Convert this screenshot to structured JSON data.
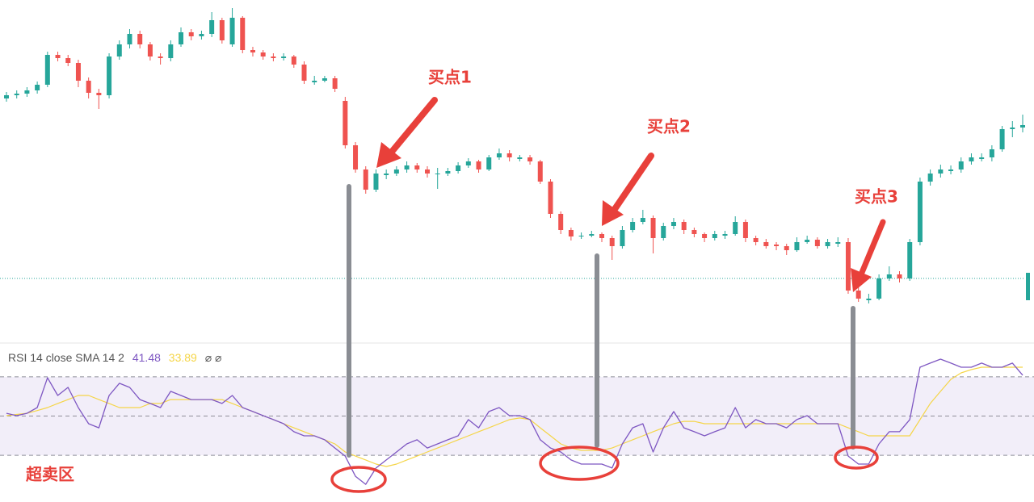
{
  "chart_data": [
    {
      "type": "candlestick",
      "open": [
        298,
        302,
        304,
        308,
        315,
        352,
        348,
        342,
        320,
        305,
        302,
        350,
        365,
        378,
        365,
        350,
        348,
        365,
        380,
        375,
        378,
        395,
        365,
        398,
        358,
        355,
        350,
        348,
        350,
        340,
        318,
        320,
        323,
        295,
        240,
        210,
        185,
        203,
        205,
        210,
        215,
        210,
        205,
        205,
        208,
        215,
        220,
        210,
        225,
        230,
        223,
        225,
        220,
        195,
        155,
        135,
        127,
        128,
        130,
        125,
        115,
        135,
        145,
        150,
        125,
        140,
        145,
        135,
        130,
        125,
        128,
        130,
        145,
        125,
        120,
        117,
        115,
        110,
        120,
        123,
        115,
        118,
        120,
        60,
        48,
        50,
        75,
        80,
        75,
        120,
        195,
        205,
        208,
        210,
        220,
        223,
        225,
        235,
        260,
        262
      ],
      "high": [
        306,
        308,
        312,
        319,
        356,
        356,
        352,
        346,
        324,
        310,
        354,
        370,
        384,
        382,
        368,
        354,
        370,
        386,
        384,
        382,
        405,
        398,
        410,
        400,
        362,
        358,
        354,
        354,
        352,
        344,
        326,
        326,
        326,
        300,
        244,
        214,
        210,
        210,
        214,
        220,
        218,
        214,
        212,
        212,
        219,
        224,
        222,
        228,
        236,
        234,
        228,
        228,
        222,
        198,
        158,
        138,
        132,
        134,
        132,
        128,
        140,
        150,
        160,
        153,
        144,
        150,
        148,
        138,
        132,
        134,
        134,
        152,
        148,
        128,
        124,
        120,
        118,
        126,
        128,
        126,
        124,
        126,
        125,
        64,
        56,
        80,
        90,
        84,
        124,
        200,
        210,
        216,
        215,
        225,
        230,
        230,
        240,
        264,
        270,
        278
      ],
      "low": [
        294,
        298,
        300,
        304,
        312,
        344,
        338,
        312,
        298,
        285,
        298,
        346,
        360,
        360,
        345,
        340,
        344,
        362,
        370,
        371,
        374,
        366,
        362,
        354,
        350,
        346,
        344,
        345,
        336,
        316,
        315,
        318,
        306,
        236,
        206,
        180,
        182,
        198,
        202,
        206,
        206,
        200,
        186,
        202,
        205,
        212,
        206,
        208,
        222,
        220,
        220,
        216,
        192,
        150,
        130,
        122,
        124,
        126,
        120,
        98,
        112,
        132,
        142,
        106,
        122,
        136,
        130,
        126,
        120,
        122,
        124,
        128,
        120,
        116,
        112,
        110,
        104,
        108,
        118,
        112,
        112,
        114,
        56,
        46,
        44,
        48,
        72,
        70,
        72,
        116,
        190,
        200,
        204,
        206,
        216,
        220,
        220,
        232,
        250,
        256
      ],
      "close": [
        302,
        304,
        308,
        315,
        352,
        348,
        342,
        320,
        305,
        302,
        350,
        365,
        378,
        365,
        350,
        348,
        365,
        380,
        375,
        378,
        395,
        370,
        398,
        358,
        355,
        350,
        348,
        350,
        340,
        320,
        320,
        323,
        310,
        240,
        210,
        185,
        205,
        205,
        210,
        215,
        210,
        205,
        205,
        208,
        215,
        220,
        210,
        225,
        230,
        225,
        225,
        220,
        195,
        155,
        135,
        127,
        128,
        130,
        125,
        115,
        135,
        145,
        150,
        125,
        140,
        145,
        135,
        130,
        125,
        130,
        130,
        145,
        125,
        120,
        115,
        115,
        110,
        120,
        123,
        115,
        120,
        120,
        60,
        50,
        50,
        75,
        80,
        75,
        120,
        195,
        205,
        210,
        210,
        220,
        225,
        225,
        235,
        260,
        262,
        265
      ],
      "up_color": "#26a69a",
      "down_color": "#ef5350",
      "ylim": [
        0,
        420
      ],
      "price_line": 75,
      "price_line_color": "#26a69a",
      "annotations": [
        "买点1",
        "买点2",
        "买点3"
      ]
    },
    {
      "type": "line",
      "legend": {
        "label": "RSI 14 close SMA 14 2",
        "values": [
          41.48,
          33.89
        ],
        "suffix": "⌀ ⌀"
      },
      "series": [
        {
          "color": "#7e57c2",
          "values": [
            51.4,
            50.2,
            51.4,
            54.3,
            69.5,
            60.5,
            64.6,
            54.3,
            46.1,
            44.0,
            60.5,
            66.7,
            64.6,
            58.4,
            56.4,
            54.3,
            62.6,
            60.5,
            58.4,
            58.4,
            58.4,
            56.4,
            60.5,
            54.3,
            52.3,
            50.2,
            48.2,
            46.1,
            42.0,
            39.9,
            39.9,
            37.9,
            33.7,
            29.6,
            19.3,
            15.2,
            23.5,
            27.6,
            31.7,
            35.8,
            37.9,
            33.7,
            35.8,
            37.9,
            39.9,
            48.2,
            44.0,
            52.3,
            54.3,
            50.2,
            50.2,
            48.2,
            37.9,
            33.7,
            31.7,
            27.6,
            25.5,
            25.5,
            25.5,
            23.5,
            35.8,
            44.0,
            46.1,
            31.7,
            44.0,
            52.3,
            44.0,
            42.0,
            39.9,
            42.0,
            44.0,
            54.3,
            44.0,
            48.2,
            46.1,
            46.1,
            44.0,
            48.2,
            50.2,
            46.1,
            46.1,
            46.1,
            29.6,
            25.5,
            25.5,
            35.8,
            42.0,
            42.0,
            48.2,
            74.9,
            77.0,
            79.0,
            77.0,
            74.9,
            74.9,
            77.0,
            74.9,
            74.9,
            77.0,
            70.8
          ]
        },
        {
          "color": "#f5d547",
          "values": [
            50.2,
            50.8,
            51.4,
            52.8,
            54.3,
            56.4,
            58.4,
            60.5,
            60.5,
            58.4,
            56.4,
            54.3,
            54.3,
            54.3,
            56.4,
            56.4,
            58.4,
            58.4,
            58.4,
            58.4,
            58.4,
            58.4,
            56.4,
            54.3,
            52.3,
            50.2,
            48.2,
            46.1,
            44.0,
            42.0,
            39.9,
            37.9,
            35.8,
            31.7,
            29.6,
            27.6,
            25.5,
            24.3,
            25.5,
            27.6,
            29.6,
            31.7,
            33.7,
            35.8,
            37.9,
            39.9,
            42.0,
            44.0,
            46.1,
            48.2,
            49.0,
            48.2,
            44.0,
            39.9,
            35.8,
            33.7,
            32.5,
            32.5,
            32.5,
            33.7,
            35.8,
            37.9,
            39.9,
            42.0,
            44.0,
            46.1,
            47.3,
            47.3,
            46.1,
            46.1,
            46.1,
            46.1,
            46.1,
            46.1,
            46.1,
            46.1,
            46.1,
            46.1,
            46.1,
            46.1,
            46.1,
            46.1,
            44.0,
            42.0,
            39.9,
            39.9,
            39.9,
            39.9,
            39.9,
            48.2,
            56.4,
            62.6,
            68.7,
            72.0,
            73.7,
            74.9,
            74.9,
            74.9,
            74.9,
            74.9
          ]
        }
      ],
      "ylim": [
        7,
        86
      ],
      "levels": [
        70,
        50,
        30
      ],
      "band_color": "#7e57c2",
      "annotation": "超卖区"
    }
  ]
}
